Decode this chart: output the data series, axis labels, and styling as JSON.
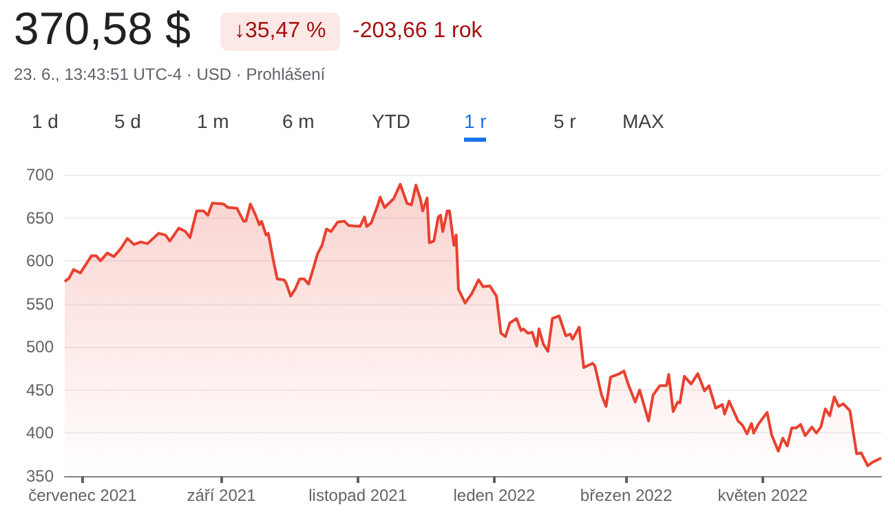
{
  "chart_data": {
    "type": "area",
    "title": "370,58 $",
    "subtitle": "23. 6., 13:43:51 UTC-4 · USD · Prohlášení",
    "annotations": [
      "↓35,47 %",
      "-203,66 1 rok",
      "1 d",
      "5 d",
      "1 m",
      "6 m",
      "YTD",
      "1 r",
      "5 r",
      "MAX"
    ],
    "x": [
      "2021-06-23",
      "2021-06-25",
      "2021-06-27",
      "2021-06-30",
      "2021-07-02",
      "2021-07-05",
      "2021-07-07",
      "2021-07-09",
      "2021-07-12",
      "2021-07-15",
      "2021-07-18",
      "2021-07-21",
      "2021-07-24",
      "2021-07-27",
      "2021-07-30",
      "2021-08-04",
      "2021-08-07",
      "2021-08-09",
      "2021-08-13",
      "2021-08-16",
      "2021-08-18",
      "2021-08-21",
      "2021-08-24",
      "2021-08-26",
      "2021-08-28",
      "2021-09-02",
      "2021-09-04",
      "2021-09-08",
      "2021-09-11",
      "2021-09-12",
      "2021-09-14",
      "2021-09-16",
      "2021-09-18",
      "2021-09-19",
      "2021-09-21",
      "2021-09-22",
      "2021-09-24",
      "2021-09-26",
      "2021-09-29",
      "2021-09-30",
      "2021-10-02",
      "2021-10-04",
      "2021-10-06",
      "2021-10-08",
      "2021-10-10",
      "2021-10-12",
      "2021-10-14",
      "2021-10-16",
      "2021-10-18",
      "2021-10-20",
      "2021-10-23",
      "2021-10-26",
      "2021-10-28",
      "2021-11-02",
      "2021-11-04",
      "2021-11-05",
      "2021-11-07",
      "2021-11-10",
      "2021-11-11",
      "2021-11-13",
      "2021-11-15",
      "2021-11-17",
      "2021-11-20",
      "2021-11-23",
      "2021-11-25",
      "2021-11-27",
      "2021-11-29",
      "2021-11-30",
      "2021-12-02",
      "2021-12-03",
      "2021-12-05",
      "2021-12-07",
      "2021-12-08",
      "2021-12-09",
      "2021-12-11",
      "2021-12-12",
      "2021-12-14",
      "2021-12-15",
      "2021-12-16",
      "2021-12-19",
      "2021-12-22",
      "2021-12-25",
      "2021-12-27",
      "2021-12-30",
      "2022-01-02",
      "2022-01-04",
      "2022-01-06",
      "2022-01-08",
      "2022-01-11",
      "2022-01-13",
      "2022-01-14",
      "2022-01-16",
      "2022-01-18",
      "2022-01-20",
      "2022-01-21",
      "2022-01-23",
      "2022-01-25",
      "2022-01-27",
      "2022-01-30",
      "2022-02-02",
      "2022-02-04",
      "2022-02-05",
      "2022-02-08",
      "2022-02-10",
      "2022-02-14",
      "2022-02-15",
      "2022-02-18",
      "2022-02-20",
      "2022-02-22",
      "2022-02-26",
      "2022-02-28",
      "2022-03-02",
      "2022-03-05",
      "2022-03-07",
      "2022-03-11",
      "2022-03-13",
      "2022-03-16",
      "2022-03-19",
      "2022-03-20",
      "2022-03-22",
      "2022-03-24",
      "2022-03-25",
      "2022-03-27",
      "2022-03-30",
      "2022-04-02",
      "2022-04-05",
      "2022-04-07",
      "2022-04-10",
      "2022-04-13",
      "2022-04-14",
      "2022-04-16",
      "2022-04-20",
      "2022-04-22",
      "2022-04-24",
      "2022-04-26",
      "2022-04-27",
      "2022-04-29",
      "2022-05-03",
      "2022-05-05",
      "2022-05-08",
      "2022-05-10",
      "2022-05-12",
      "2022-05-14",
      "2022-05-16",
      "2022-05-18",
      "2022-05-20",
      "2022-05-23",
      "2022-05-25",
      "2022-05-27",
      "2022-05-29",
      "2022-05-31",
      "2022-06-02",
      "2022-06-04",
      "2022-06-06",
      "2022-06-09",
      "2022-06-12",
      "2022-06-14",
      "2022-06-17",
      "2022-06-19",
      "2022-06-23"
    ],
    "series": [
      {
        "color": "#e8412f",
        "values": [
          576,
          580,
          590,
          586,
          594,
          606,
          606,
          600,
          609,
          605,
          614,
          626,
          619,
          622,
          620,
          632,
          630,
          623,
          638,
          634,
          627,
          658,
          658,
          653,
          667,
          666,
          662,
          661,
          646,
          646,
          666,
          655,
          642,
          646,
          630,
          632,
          604,
          579,
          578,
          574,
          559,
          567,
          579,
          579,
          573,
          590,
          608,
          618,
          637,
          634,
          645,
          646,
          641,
          640,
          651,
          640,
          644,
          665,
          674,
          662,
          667,
          672,
          689,
          667,
          665,
          688,
          672,
          658,
          673,
          621,
          623,
          651,
          653,
          634,
          658,
          658,
          618,
          630,
          567,
          551,
          562,
          578,
          570,
          571,
          559,
          516,
          512,
          528,
          533,
          519,
          521,
          516,
          517,
          501,
          521,
          503,
          495,
          533,
          536,
          513,
          515,
          509,
          523,
          476,
          481,
          478,
          444,
          431,
          465,
          469,
          472,
          456,
          436,
          450,
          414,
          444,
          455,
          455,
          468,
          425,
          436,
          435,
          466,
          457,
          469,
          449,
          455,
          429,
          433,
          422,
          437,
          414,
          409,
          399,
          411,
          400,
          410,
          424,
          398,
          379,
          394,
          385,
          406,
          406,
          410,
          397,
          407,
          400,
          407,
          428,
          420,
          442,
          431,
          434,
          426,
          376,
          377,
          362,
          366,
          371
        ]
      }
    ],
    "xlim": [
      "2021-06-23",
      "2022-06-23"
    ],
    "xticks": [
      {
        "value": "2021-07-01",
        "label": "červenec 2021"
      },
      {
        "value": "2021-09-01",
        "label": "září 2021"
      },
      {
        "value": "2021-11-01",
        "label": "listopad 2021"
      },
      {
        "value": "2022-01-01",
        "label": "leden 2022"
      },
      {
        "value": "2022-03-01",
        "label": "březen 2022"
      },
      {
        "value": "2022-05-01",
        "label": "květen 2022"
      }
    ],
    "ylim": [
      350,
      700
    ],
    "yticks": [
      350,
      400,
      450,
      500,
      550,
      600,
      650,
      700
    ],
    "grid": "y"
  }
}
